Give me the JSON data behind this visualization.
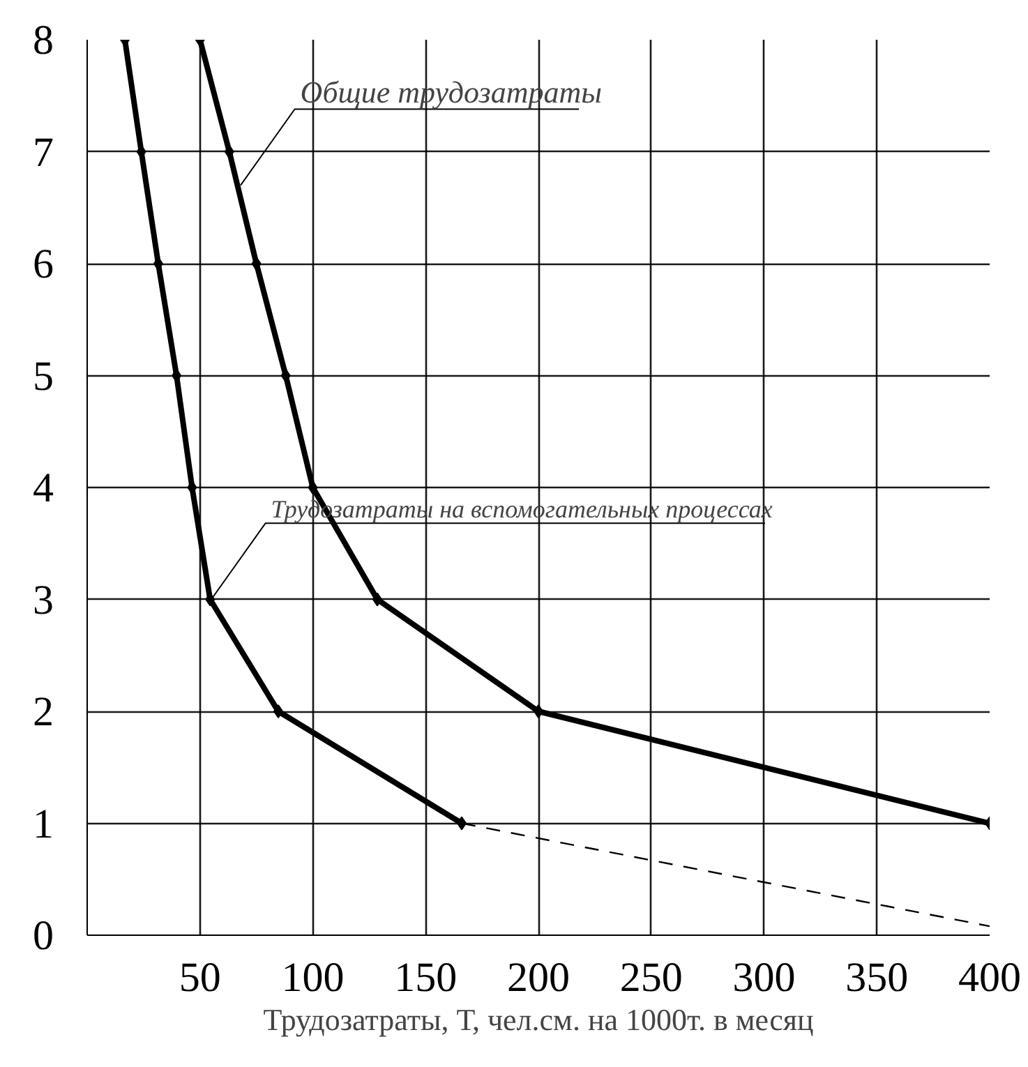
{
  "chart_data": {
    "type": "line",
    "xlabel": "Трудозатраты, Т, чел.см. на 1000т. в месяц",
    "xlim": [
      0,
      400
    ],
    "ylim": [
      0,
      8
    ],
    "xticks": [
      50,
      100,
      150,
      200,
      250,
      300,
      350,
      400
    ],
    "yticks": [
      0,
      1,
      2,
      3,
      4,
      5,
      6,
      7,
      8
    ],
    "grid": true,
    "marker": "diamond",
    "line_style": "solid",
    "series": [
      {
        "color": "#000000",
        "x": [
          16.7,
          24,
          31.5,
          39.6,
          46.5,
          54.5,
          84.7,
          166
        ],
        "values": [
          8,
          7,
          6,
          5,
          4,
          3,
          2,
          1
        ]
      },
      {
        "color": "#000000",
        "x": [
          50,
          63,
          75,
          88,
          100,
          128.6,
          200,
          400
        ],
        "values": [
          8,
          7,
          6,
          5,
          4,
          3,
          2,
          1
        ]
      },
      {
        "color": "#000000",
        "x": [
          166,
          400
        ],
        "values": [
          1,
          0.08
        ],
        "marker": "none",
        "line_style": "dashed"
      }
    ],
    "annotations": [
      {
        "text": "Общие трудозатраты",
        "x": 68,
        "y": 6.7
      },
      {
        "text": "Трудозатраты на вспомогательных процессах",
        "x": 55,
        "y": 3
      }
    ]
  }
}
